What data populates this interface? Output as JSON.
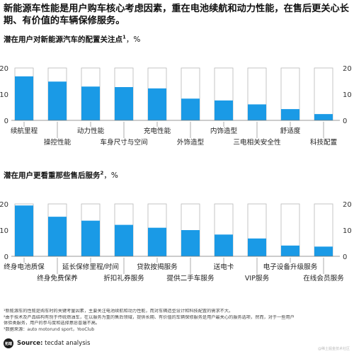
{
  "headline": "新能源车性能是用户购车核心考虑因素，重在电池续航和动力性能，在售后更关心长期、有价值的车辆保修服务。",
  "footnotes": {
    "note1": "¹新能源车的性能是购车时的关键考量因素，主要关注电池续航和动力性能，而对车辆造型设计和科技配置的需求不大。",
    "note2": "²由于技术及产品结构有别于传统燃油车，在以服务为重的售后领域，提供长期、有价值的车辆保修服务是用户最关心的服务选项，然而，对于一些用户",
    "note2b": "体验类服务，用户的参与度和选择意愿普遍不高。",
    "data_source": "³数据来源：auto motorund sport，YooClub"
  },
  "source": {
    "label": "Source:",
    "value": "tecdat analysis"
  },
  "logo": {
    "text": "拓端",
    "icon": "tecdat-logo-icon"
  },
  "watermark": "@稀土掘金技术社区",
  "colors": {
    "bar": "#1a9ae6",
    "track": "#ffffff",
    "track_border": "#b8b8b8",
    "axis": "#777777"
  },
  "chart_data": [
    {
      "type": "bar",
      "title": "潜在用户对新能源汽车的配置关注点",
      "title_sup": "1",
      "unit_label": "，%",
      "categories": [
        "续航里程",
        "操控性能",
        "动力性能",
        "车身尺寸与空间",
        "充电性能",
        "外饰造型",
        "内饰造型",
        "三电相关安全性",
        "舒适度",
        "科技配置"
      ],
      "values": [
        16.8,
        14.8,
        12.9,
        12.7,
        12.2,
        8.3,
        7.6,
        6.1,
        4.3,
        2.4
      ],
      "track_max": 20,
      "ylim": [
        0,
        20
      ],
      "yticks": [
        0,
        10,
        20
      ],
      "grid": false,
      "legend": "none"
    },
    {
      "type": "bar",
      "title": "潜在用户更看重那些售后服务",
      "title_sup": "2",
      "unit_label": "，%",
      "categories": [
        "终身电池质保",
        "终身免费保养",
        "延长保修里程/时间",
        "折扣礼券服务",
        "贷款按揭服务",
        "提供二手车服务",
        "送电卡",
        "VIP服务",
        "电子设备升级服务",
        "在线会员服务"
      ],
      "values": [
        19.4,
        15.1,
        13.6,
        12.0,
        10.9,
        10.0,
        8.3,
        6.8,
        4.1,
        3.7
      ],
      "track_max": 20,
      "ylim": [
        0,
        20
      ],
      "yticks": [
        0,
        10,
        20
      ],
      "grid": false,
      "legend": "none"
    }
  ]
}
